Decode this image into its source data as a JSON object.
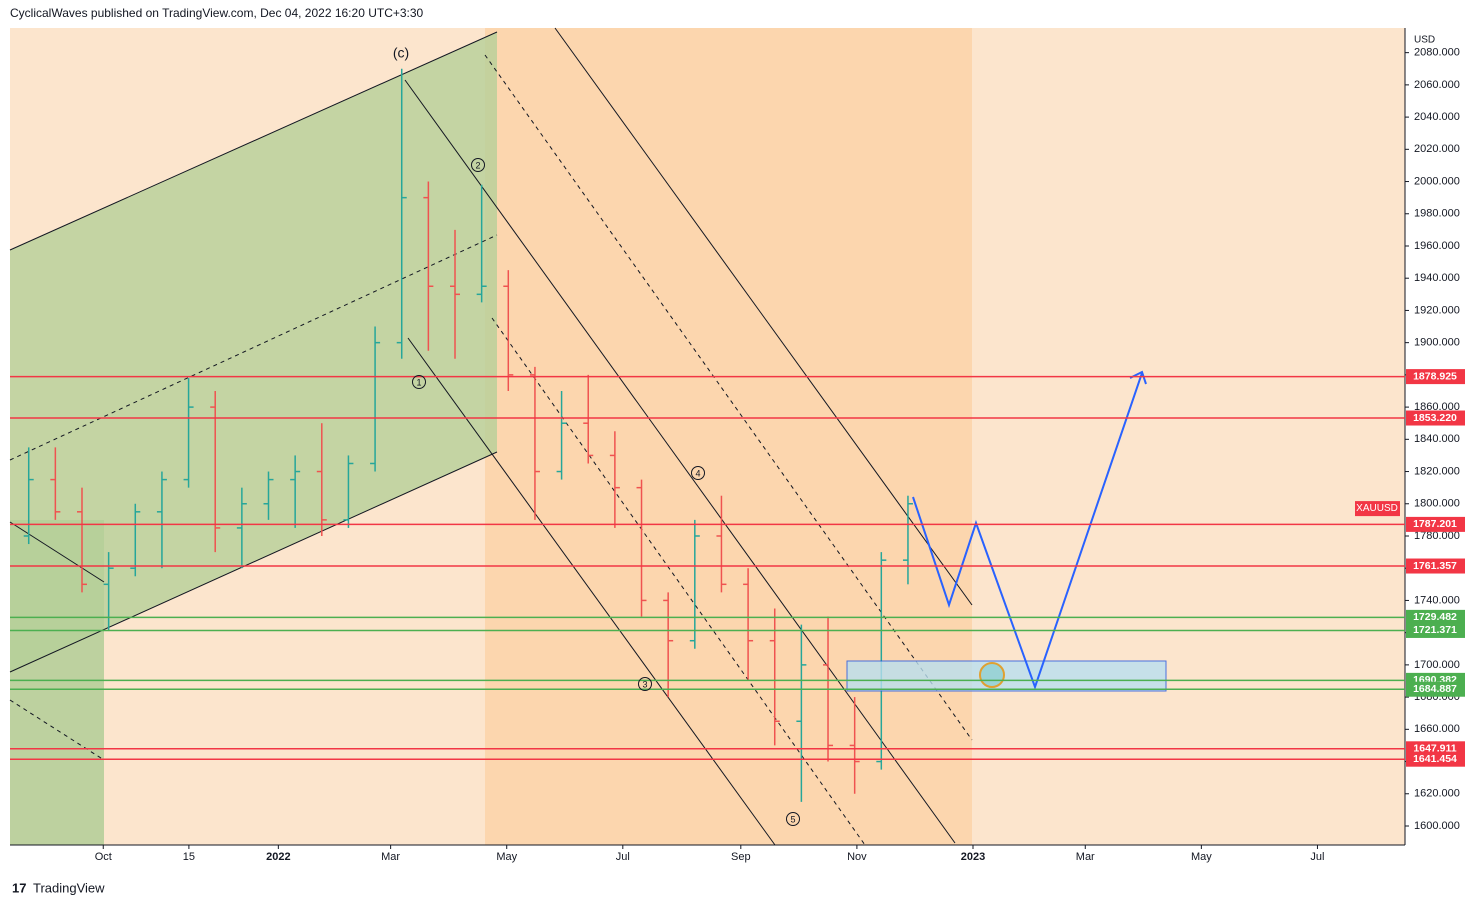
{
  "header": "CyclicalWaves published on TradingView.com, Dec 04, 2022 16:20 UTC+3:30",
  "footer": "TradingView",
  "chart_data": {
    "type": "ohlc",
    "symbol": "XAUUSD",
    "last_price": 1797,
    "currency": "USD",
    "x": [
      "2021-08-16",
      "2021-08-30",
      "2021-09-13",
      "2021-09-27",
      "2021-10-11",
      "2021-10-25",
      "2021-11-08",
      "2021-11-22",
      "2021-12-06",
      "2021-12-20",
      "2022-01-03",
      "2022-01-17",
      "2022-01-31",
      "2022-02-14",
      "2022-02-28",
      "2022-03-14",
      "2022-03-28",
      "2022-04-11",
      "2022-04-25",
      "2022-05-09",
      "2022-05-23",
      "2022-06-06",
      "2022-06-20",
      "2022-07-04",
      "2022-07-18",
      "2022-08-01",
      "2022-08-15",
      "2022-08-29",
      "2022-09-12",
      "2022-09-26",
      "2022-10-10",
      "2022-10-24",
      "2022-11-07",
      "2022-11-21"
    ],
    "open": [
      1780,
      1815,
      1795,
      1750,
      1760,
      1795,
      1815,
      1860,
      1785,
      1800,
      1815,
      1820,
      1790,
      1825,
      1900,
      1990,
      1935,
      1930,
      1935,
      1880,
      1820,
      1850,
      1830,
      1810,
      1740,
      1715,
      1780,
      1750,
      1715,
      1665,
      1700,
      1650,
      1640,
      1765
    ],
    "high": [
      1835,
      1835,
      1810,
      1770,
      1800,
      1820,
      1878,
      1870,
      1810,
      1820,
      1830,
      1850,
      1830,
      1910,
      2070,
      2000,
      1970,
      1998,
      1945,
      1885,
      1870,
      1880,
      1845,
      1815,
      1745,
      1790,
      1805,
      1760,
      1735,
      1725,
      1730,
      1680,
      1770,
      1805
    ],
    "low": [
      1775,
      1790,
      1745,
      1721,
      1755,
      1760,
      1810,
      1770,
      1760,
      1790,
      1785,
      1780,
      1785,
      1820,
      1890,
      1895,
      1890,
      1925,
      1870,
      1790,
      1815,
      1825,
      1785,
      1730,
      1680,
      1710,
      1745,
      1690,
      1650,
      1615,
      1640,
      1620,
      1635,
      1750
    ],
    "close": [
      1815,
      1795,
      1750,
      1760,
      1795,
      1815,
      1860,
      1785,
      1800,
      1815,
      1820,
      1790,
      1825,
      1900,
      1990,
      1935,
      1930,
      1935,
      1880,
      1820,
      1850,
      1830,
      1810,
      1740,
      1715,
      1780,
      1750,
      1715,
      1665,
      1700,
      1650,
      1640,
      1765,
      1800
    ],
    "up_color": "#26a69a",
    "down_color": "#ef5350",
    "xlim": [
      "2021-08-13",
      "2023-08-16"
    ],
    "xticks": [
      {
        "value": "2021-10-01",
        "label": "Oct"
      },
      {
        "value": "2021-11-15",
        "label": "15"
      },
      {
        "value": "2022-01-01",
        "label": "2022"
      },
      {
        "value": "2022-03-01",
        "label": "Mar"
      },
      {
        "value": "2022-05-01",
        "label": "May"
      },
      {
        "value": "2022-07-01",
        "label": "Jul"
      },
      {
        "value": "2022-09-01",
        "label": "Sep"
      },
      {
        "value": "2022-11-01",
        "label": "Nov"
      },
      {
        "value": "2023-01-01",
        "label": "2023"
      },
      {
        "value": "2023-03-01",
        "label": "Mar"
      },
      {
        "value": "2023-05-01",
        "label": "May"
      },
      {
        "value": "2023-07-01",
        "label": "Jul"
      }
    ],
    "ylim": [
      1588.2,
      2095.3
    ],
    "yticks": [
      {
        "value": 1600,
        "label": "1600.000"
      },
      {
        "value": 1620,
        "label": "1620.000"
      },
      {
        "value": 1640,
        "label": "1640.000"
      },
      {
        "value": 1660,
        "label": "1660.000"
      },
      {
        "value": 1680,
        "label": "1680.000"
      },
      {
        "value": 1700,
        "label": "1700.000"
      },
      {
        "value": 1720,
        "label": "1720.000"
      },
      {
        "value": 1740,
        "label": "1740.000"
      },
      {
        "value": 1760,
        "label": "1760.000"
      },
      {
        "value": 1780,
        "label": "1780.000"
      },
      {
        "value": 1800,
        "label": "1800.000"
      },
      {
        "value": 1820,
        "label": "1820.000"
      },
      {
        "value": 1840,
        "label": "1840.000"
      },
      {
        "value": 1860,
        "label": "1860.000"
      },
      {
        "value": 1880,
        "label": "1880.000"
      },
      {
        "value": 1900,
        "label": "1900.000"
      },
      {
        "value": 1920,
        "label": "1920.000"
      },
      {
        "value": 1940,
        "label": "1940.000"
      },
      {
        "value": 1960,
        "label": "1960.000"
      },
      {
        "value": 1980,
        "label": "1980.000"
      },
      {
        "value": 2000,
        "label": "2000.000"
      },
      {
        "value": 2020,
        "label": "2020.000"
      },
      {
        "value": 2040,
        "label": "2040.000"
      },
      {
        "value": 2060,
        "label": "2060.000"
      },
      {
        "value": 2080,
        "label": "2080.000"
      }
    ],
    "levels": [
      {
        "value": 1878.925,
        "label": "1878.925",
        "color": "#f23645"
      },
      {
        "value": 1853.22,
        "label": "1853.220",
        "color": "#f23645"
      },
      {
        "value": 1787.201,
        "label": "1787.201",
        "color": "#f23645"
      },
      {
        "value": 1761.357,
        "label": "1761.357",
        "color": "#f23645"
      },
      {
        "value": 1729.482,
        "label": "1729.482",
        "color": "#4caf50"
      },
      {
        "value": 1721.371,
        "label": "1721.371",
        "color": "#4caf50"
      },
      {
        "value": 1690.382,
        "label": "1690.382",
        "color": "#4caf50"
      },
      {
        "value": 1684.887,
        "label": "1684.887",
        "color": "#4caf50"
      },
      {
        "value": 1647.911,
        "label": "1647.911",
        "color": "#f23645"
      },
      {
        "value": 1641.454,
        "label": "1641.454",
        "color": "#f23645"
      }
    ],
    "annotations": [
      "(c)",
      "1",
      "2",
      "3",
      "4",
      "5"
    ]
  }
}
